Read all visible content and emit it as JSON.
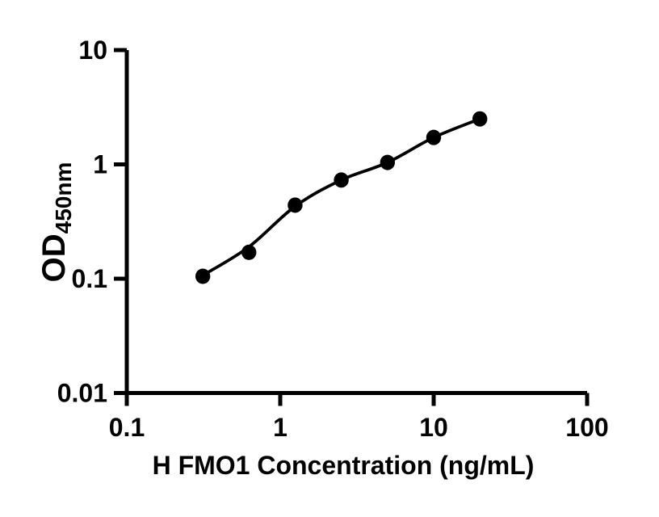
{
  "figure": {
    "background_color": "#ffffff",
    "axis_color": "#000000",
    "point_color": "#000000",
    "curve_color": "#000000"
  },
  "chart_data": {
    "type": "scatter",
    "title": "",
    "xlabel": "H FMO1 Concentration (ng/mL)",
    "ylabel": "OD",
    "ylabel_subscript": "450nm",
    "x_scale": "log",
    "y_scale": "log",
    "xlim": [
      0.1,
      100
    ],
    "ylim": [
      0.01,
      10
    ],
    "x_ticks": [
      {
        "value": 0.1,
        "label": "0.1"
      },
      {
        "value": 1,
        "label": "1"
      },
      {
        "value": 10,
        "label": "10"
      },
      {
        "value": 100,
        "label": "100"
      }
    ],
    "y_ticks": [
      {
        "value": 10,
        "label": "10"
      },
      {
        "value": 1,
        "label": "1"
      },
      {
        "value": 0.1,
        "label": "0.1"
      },
      {
        "value": 0.01,
        "label": "0.01"
      }
    ],
    "grid": false,
    "legend": null,
    "points": [
      {
        "x": 0.313,
        "y": 0.105
      },
      {
        "x": 0.625,
        "y": 0.17
      },
      {
        "x": 1.25,
        "y": 0.44
      },
      {
        "x": 2.5,
        "y": 0.73
      },
      {
        "x": 5,
        "y": 1.04
      },
      {
        "x": 10,
        "y": 1.72
      },
      {
        "x": 20,
        "y": 2.5
      }
    ],
    "fit_curve_points": [
      {
        "x": 0.313,
        "y": 0.107
      },
      {
        "x": 0.625,
        "y": 0.19
      },
      {
        "x": 1.25,
        "y": 0.43
      },
      {
        "x": 2.5,
        "y": 0.73
      },
      {
        "x": 5,
        "y": 1.04
      },
      {
        "x": 10,
        "y": 1.72
      },
      {
        "x": 20,
        "y": 2.5
      }
    ]
  }
}
